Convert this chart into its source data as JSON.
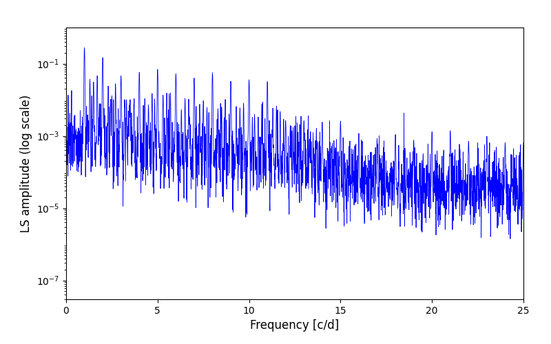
{
  "title": "",
  "xlabel": "Frequency [c/d]",
  "ylabel": "LS amplitude (log scale)",
  "xlim": [
    0,
    25
  ],
  "ylim_log": [
    3e-08,
    1.0
  ],
  "line_color": "#0000ff",
  "line_width": 0.6,
  "yscale": "log",
  "figsize": [
    8.0,
    5.0
  ],
  "dpi": 100,
  "freq_max": 25.0,
  "n_points": 2500,
  "seed": 12345
}
